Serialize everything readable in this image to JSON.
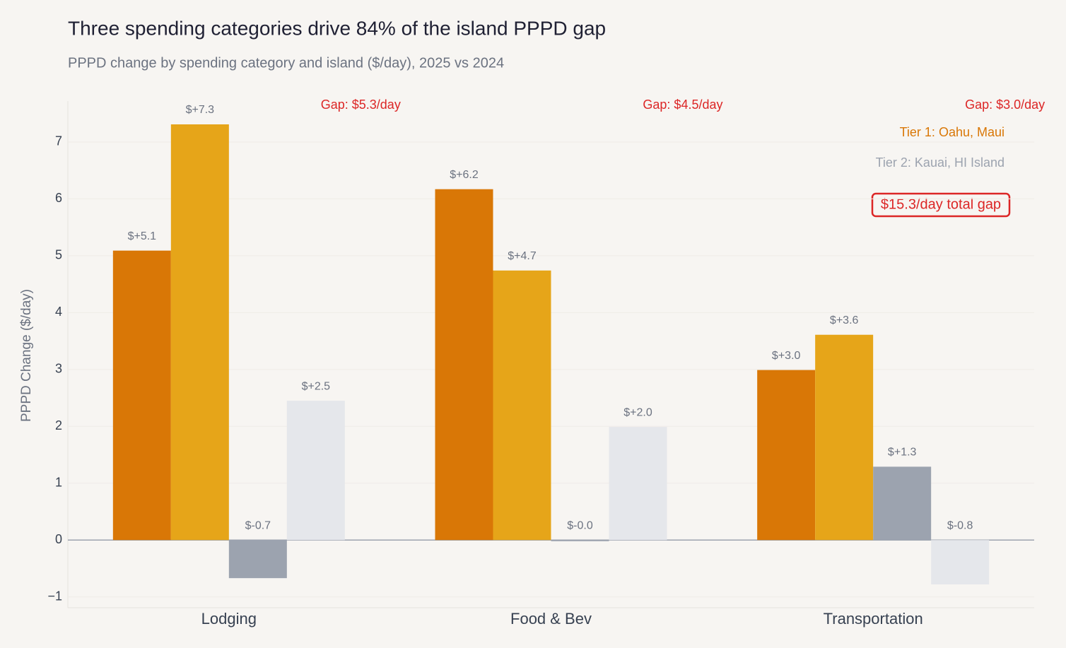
{
  "chart_data": {
    "type": "bar",
    "title": "Three spending categories drive 84% of the island PPPD gap",
    "subtitle": "PPPD change by spending category and island ($/day), 2025 vs 2024",
    "y_label": "PPPD Change ($/day)",
    "categories": [
      "Lodging",
      "Food & Bev",
      "Transportation"
    ],
    "series": [
      {
        "color": "#d97706",
        "values": [
          5.09,
          6.17,
          2.99
        ],
        "value_labels": [
          "$+5.1",
          "$+6.2",
          "$+3.0"
        ]
      },
      {
        "color": "#e6a519",
        "values": [
          7.31,
          4.74,
          3.61
        ],
        "value_labels": [
          "$+7.3",
          "$+4.7",
          "$+3.6"
        ]
      },
      {
        "color": "#9ca3af",
        "values": [
          -0.67,
          -0.02,
          1.29
        ],
        "value_labels": [
          "$-0.7",
          "$-0.0",
          "$+1.3"
        ]
      },
      {
        "color": "#e5e7eb",
        "values": [
          2.45,
          1.99,
          -0.78
        ],
        "value_labels": [
          "$+2.5",
          "$+2.0",
          "$-0.8"
        ]
      }
    ],
    "gap_labels": [
      "Gap: $5.3/day",
      "Gap: $4.5/day",
      "Gap: $3.0/day"
    ],
    "tier_labels": [
      {
        "text": "Tier 1: Oahu, Maui",
        "color": "#d97706"
      },
      {
        "text": "Tier 2: Kauai, HI Island",
        "color": "#9ca3af"
      }
    ],
    "total_gap": "$15.3/day total gap",
    "ylim": [
      -1.19,
      7.72
    ],
    "yticks": [
      {
        "value": -1,
        "label": "−1"
      },
      0,
      1,
      2,
      3,
      4,
      5,
      6,
      7
    ],
    "grid": true
  }
}
